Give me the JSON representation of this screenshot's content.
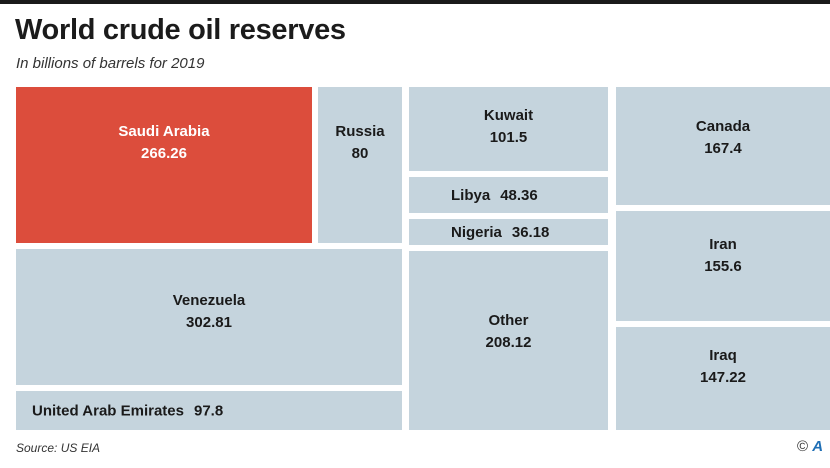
{
  "header": {
    "title": "World crude oil reserves",
    "subtitle": "In billions of barrels for 2019"
  },
  "footer": {
    "source": "Source: US EIA",
    "copyright_symbol": "©",
    "logo_glyph": "A"
  },
  "colors": {
    "highlight": "#dc4d3c",
    "tile": "#c5d4dd",
    "label_dark": "#1a1a1a",
    "label_light": "#ffffff"
  },
  "chart_data": {
    "type": "treemap",
    "title": "World crude oil reserves",
    "subtitle": "In billions of barrels for 2019",
    "unit": "billions of barrels",
    "categories": [
      "Saudi Arabia",
      "Russia",
      "Kuwait",
      "Libya",
      "Nigeria",
      "Canada",
      "Iran",
      "Iraq",
      "Venezuela",
      "United Arab Emirates",
      "Other"
    ],
    "values": [
      266.26,
      80,
      101.5,
      48.36,
      36.18,
      167.4,
      155.6,
      147.22,
      302.81,
      97.8,
      208.12
    ],
    "labels": [
      "266.26",
      "80",
      "101.5",
      "48.36",
      "36.18",
      "167.4",
      "155.6",
      "147.22",
      "302.81",
      "97.8",
      "208.12"
    ],
    "highlighted": "Saudi Arabia"
  }
}
